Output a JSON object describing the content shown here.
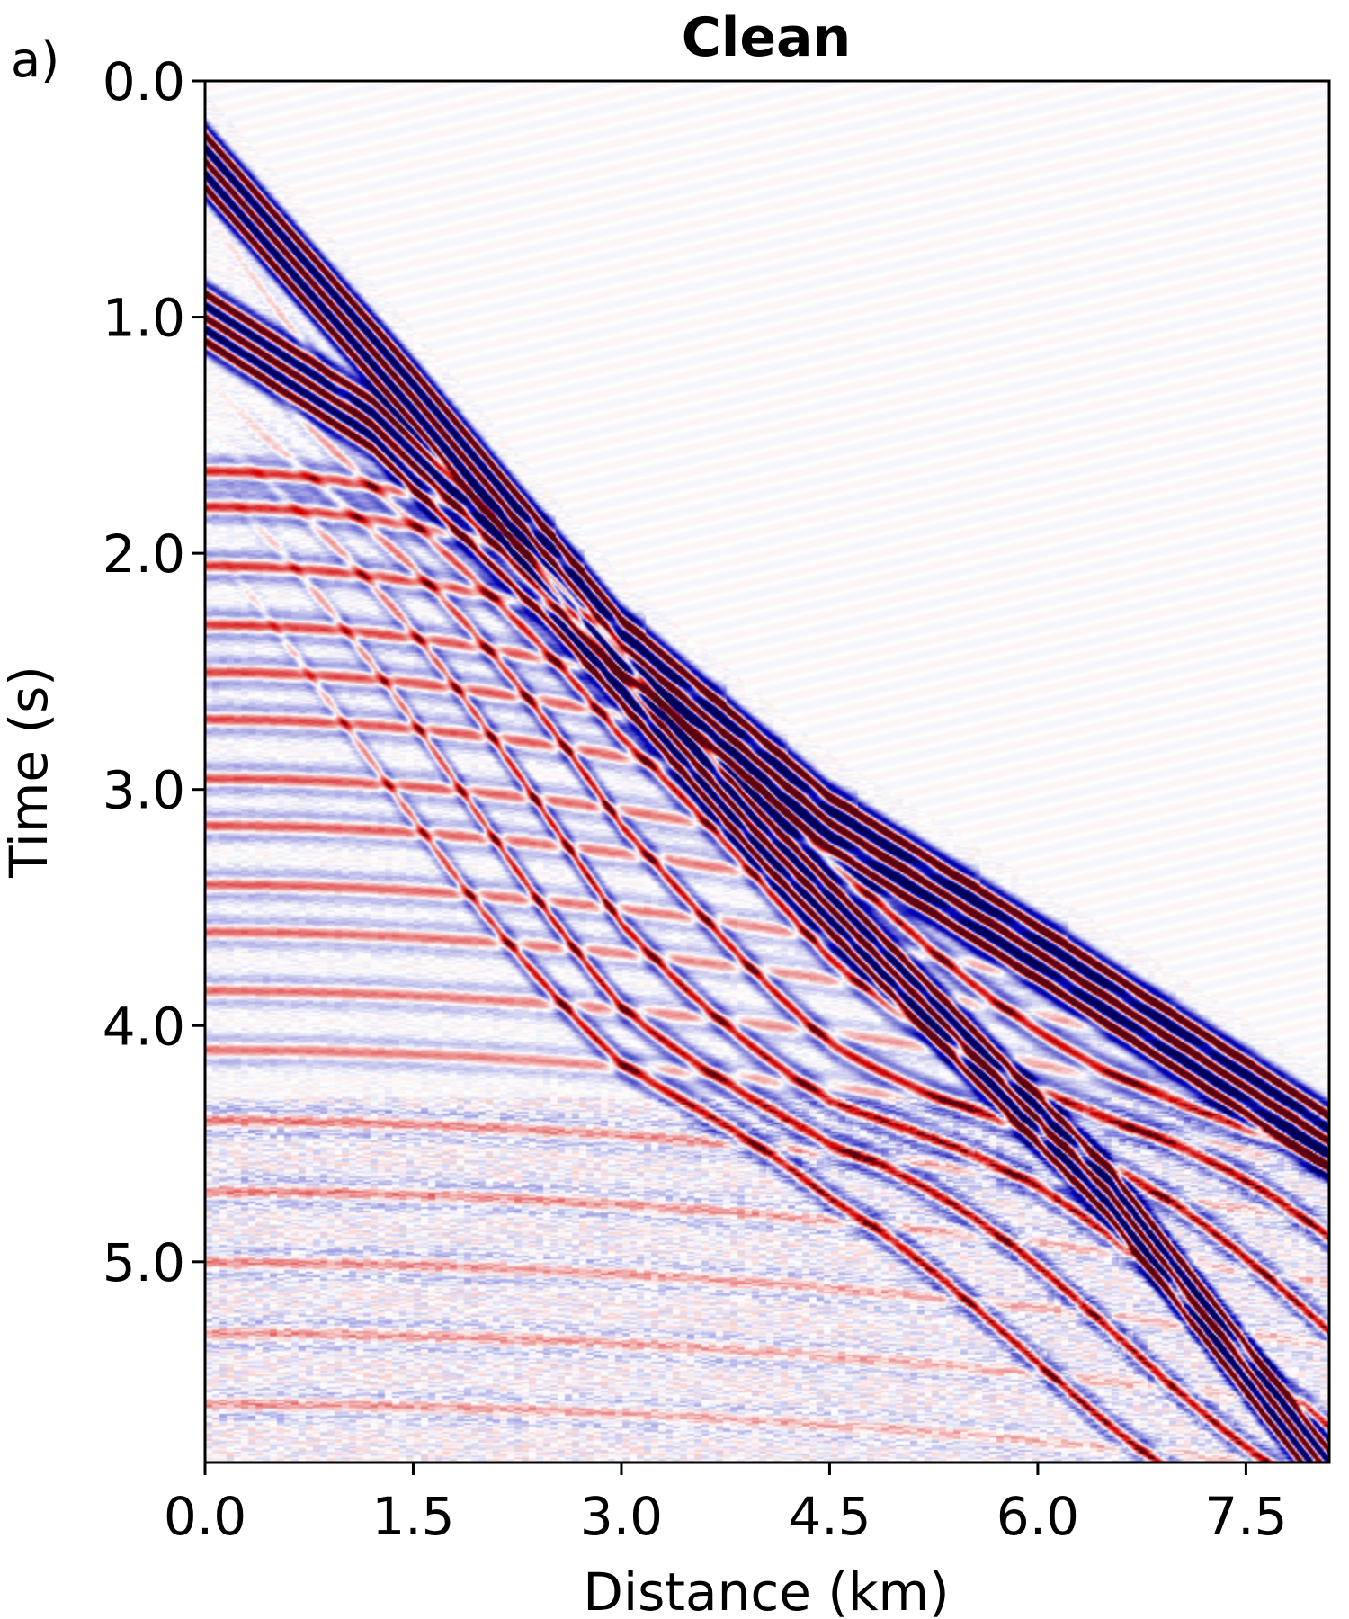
{
  "panel_label": "a)",
  "chart_data": {
    "type": "heatmap",
    "title": "Clean",
    "xlabel": "Distance (km)",
    "ylabel": "Time (s)",
    "xlim": [
      0.0,
      8.1
    ],
    "ylim": [
      5.85,
      0.0
    ],
    "y_inverted": true,
    "x_ticks": [
      0.0,
      1.5,
      3.0,
      4.5,
      6.0,
      7.5
    ],
    "x_tick_labels": [
      "0.0",
      "1.5",
      "3.0",
      "4.5",
      "6.0",
      "7.5"
    ],
    "y_ticks": [
      0.0,
      1.0,
      2.0,
      3.0,
      4.0,
      5.0
    ],
    "y_tick_labels": [
      "0.0",
      "1.0",
      "2.0",
      "3.0",
      "4.0",
      "5.0"
    ],
    "grid": false,
    "colormap": "seismic",
    "colors": {
      "negative": "#0000b4",
      "zero": "#ffffff",
      "positive": "#d40000",
      "extreme": "#5a0010"
    },
    "events": [
      {
        "kind": "direct_arrival",
        "points": [
          [
            0.0,
            0.2
          ],
          [
            1.5,
            1.2
          ],
          [
            3.0,
            2.25
          ],
          [
            4.5,
            3.0
          ],
          [
            6.0,
            3.55
          ],
          [
            8.1,
            4.35
          ]
        ]
      },
      {
        "kind": "refraction",
        "points": [
          [
            0.0,
            0.9
          ],
          [
            1.2,
            1.35
          ],
          [
            2.5,
            2.1
          ],
          [
            4.0,
            3.1
          ],
          [
            5.5,
            4.0
          ],
          [
            6.5,
            4.6
          ],
          [
            8.1,
            5.8
          ]
        ]
      },
      {
        "kind": "reflection_t0",
        "values_s": [
          1.65,
          1.8,
          2.05,
          2.3,
          2.5,
          2.7,
          2.95,
          3.15,
          3.4,
          3.6,
          3.85,
          4.1,
          4.4,
          4.7,
          5.0,
          5.3,
          5.6
        ]
      }
    ]
  }
}
